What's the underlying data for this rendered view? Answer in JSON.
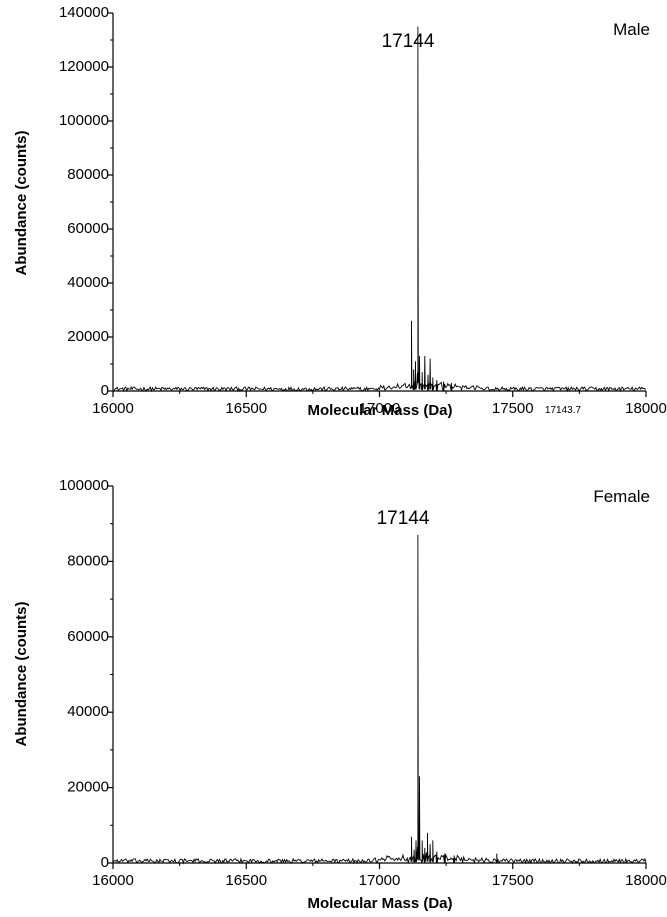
{
  "chart_data": [
    {
      "type": "line",
      "title": "Male",
      "xlabel": "Molecular Mass (Da)",
      "ylabel": "Abundance (counts)",
      "xlim": [
        16000,
        18000
      ],
      "ylim": [
        0,
        140000
      ],
      "xticks": [
        16000,
        16500,
        17000,
        17500,
        18000
      ],
      "xtick_labels": [
        "16000",
        "16500",
        "17000",
        "17500",
        "18000"
      ],
      "yticks": [
        0,
        20000,
        40000,
        60000,
        80000,
        100000,
        120000,
        140000
      ],
      "ytick_labels": [
        "0",
        "20000",
        "40000",
        "60000",
        "80000",
        "100000",
        "120000",
        "140000"
      ],
      "peak_label": "17144",
      "extra_note": "17143.7",
      "baseline_noise": 1500,
      "series": [
        {
          "x": [
            17120,
            17128,
            17135,
            17144,
            17150,
            17160,
            17170,
            17182,
            17190,
            17200,
            17215,
            17240,
            17270
          ],
          "y": [
            26000,
            8000,
            11000,
            135000,
            13000,
            7000,
            13000,
            6000,
            12000,
            5000,
            4000,
            3500,
            3000
          ]
        }
      ]
    },
    {
      "type": "line",
      "title": "Female",
      "xlabel": "Molecular Mass (Da)",
      "ylabel": "Abundance (counts)",
      "xlim": [
        16000,
        18000
      ],
      "ylim": [
        0,
        100000
      ],
      "xticks": [
        16000,
        16500,
        17000,
        17500,
        18000
      ],
      "xtick_labels": [
        "16000",
        "16500",
        "17000",
        "17500",
        "18000"
      ],
      "yticks": [
        0,
        20000,
        40000,
        60000,
        80000,
        100000
      ],
      "ytick_labels": [
        "0",
        "20000",
        "40000",
        "60000",
        "80000",
        "100000"
      ],
      "peak_label": "17144",
      "baseline_noise": 1100,
      "series": [
        {
          "x": [
            17120,
            17130,
            17137,
            17144,
            17150,
            17160,
            17170,
            17180,
            17190,
            17200,
            17215,
            17245,
            17280,
            17440
          ],
          "y": [
            7000,
            3500,
            6000,
            87000,
            23000,
            6000,
            4000,
            8000,
            5000,
            6000,
            3000,
            2500,
            2000,
            2500
          ]
        }
      ]
    }
  ]
}
